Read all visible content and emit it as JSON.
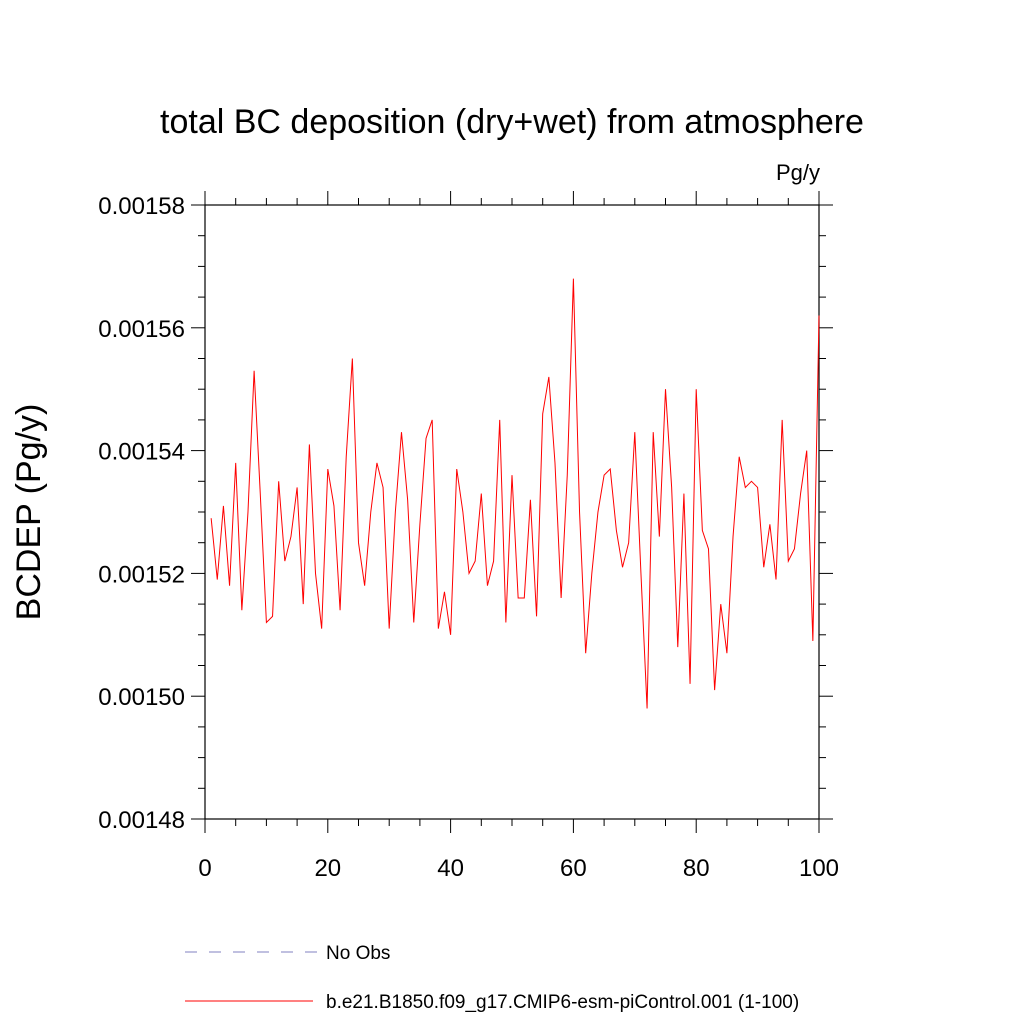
{
  "chart_data": {
    "type": "line",
    "title": "total BC deposition (dry+wet) from atmosphere",
    "units": "Pg/y",
    "ylabel": "BCDEP  (Pg/y)",
    "xlabel": "",
    "xlim": [
      0,
      100
    ],
    "ylim": [
      0.00148,
      0.00158
    ],
    "xticks": [
      0,
      20,
      40,
      60,
      80,
      100
    ],
    "xtick_labels": [
      "0",
      "20",
      "40",
      "60",
      "80",
      "100"
    ],
    "yticks": [
      0.00148,
      0.0015,
      0.00152,
      0.00154,
      0.00156,
      0.00158
    ],
    "ytick_labels": [
      "0.00148",
      "0.00150",
      "0.00152",
      "0.00154",
      "0.00156",
      "0.00158"
    ],
    "grid": false,
    "legend_position": "bottom",
    "series": [
      {
        "name": "No Obs",
        "color": "#8080c0",
        "style": "dashed",
        "x": [],
        "y": []
      },
      {
        "name": "b.e21.B1850.f09_g17.CMIP6-esm-piControl.001 (1-100)",
        "color": "#ff0000",
        "style": "solid",
        "x": [
          1,
          2,
          3,
          4,
          5,
          6,
          7,
          8,
          9,
          10,
          11,
          12,
          13,
          14,
          15,
          16,
          17,
          18,
          19,
          20,
          21,
          22,
          23,
          24,
          25,
          26,
          27,
          28,
          29,
          30,
          31,
          32,
          33,
          34,
          35,
          36,
          37,
          38,
          39,
          40,
          41,
          42,
          43,
          44,
          45,
          46,
          47,
          48,
          49,
          50,
          51,
          52,
          53,
          54,
          55,
          56,
          57,
          58,
          59,
          60,
          61,
          62,
          63,
          64,
          65,
          66,
          67,
          68,
          69,
          70,
          71,
          72,
          73,
          74,
          75,
          76,
          77,
          78,
          79,
          80,
          81,
          82,
          83,
          84,
          85,
          86,
          87,
          88,
          89,
          90,
          91,
          92,
          93,
          94,
          95,
          96,
          97,
          98,
          99,
          100
        ],
        "y": [
          0.001529,
          0.001519,
          0.001531,
          0.001518,
          0.001538,
          0.001514,
          0.00153,
          0.001553,
          0.001533,
          0.001512,
          0.001513,
          0.001535,
          0.001522,
          0.001526,
          0.001534,
          0.001515,
          0.001541,
          0.00152,
          0.001511,
          0.001537,
          0.001531,
          0.001514,
          0.001539,
          0.001555,
          0.001525,
          0.001518,
          0.00153,
          0.001538,
          0.001534,
          0.001511,
          0.00153,
          0.001543,
          0.001532,
          0.001512,
          0.001528,
          0.001542,
          0.001545,
          0.001511,
          0.001517,
          0.00151,
          0.001537,
          0.00153,
          0.00152,
          0.001522,
          0.001533,
          0.001518,
          0.001522,
          0.001545,
          0.001512,
          0.001536,
          0.001516,
          0.001516,
          0.001532,
          0.001513,
          0.001546,
          0.001552,
          0.001538,
          0.001516,
          0.001536,
          0.001568,
          0.00153,
          0.001507,
          0.00152,
          0.00153,
          0.001536,
          0.001537,
          0.001527,
          0.001521,
          0.001525,
          0.001543,
          0.00152,
          0.001498,
          0.001543,
          0.001526,
          0.00155,
          0.001534,
          0.001508,
          0.001533,
          0.001502,
          0.00155,
          0.001527,
          0.001524,
          0.001501,
          0.001515,
          0.001507,
          0.001526,
          0.001539,
          0.001534,
          0.001535,
          0.001534,
          0.001521,
          0.001528,
          0.001519,
          0.001545,
          0.001522,
          0.001524,
          0.001533,
          0.00154,
          0.001509,
          0.001562
        ]
      }
    ]
  }
}
